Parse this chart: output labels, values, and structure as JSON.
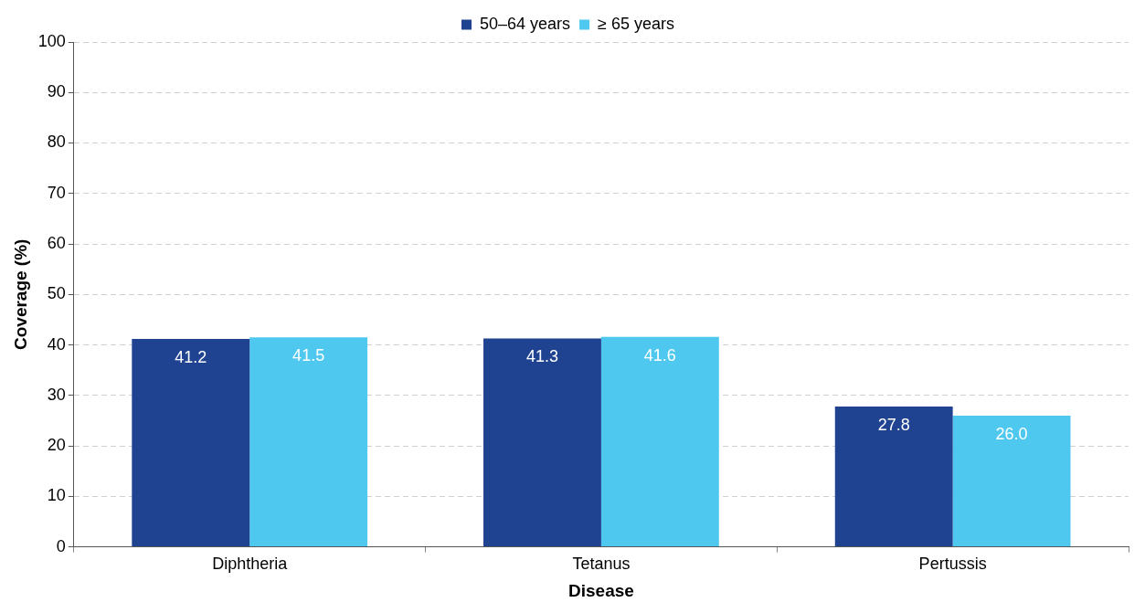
{
  "chart_data": {
    "type": "bar",
    "xlabel": "Disease",
    "ylabel": "Coverage (%)",
    "categories": [
      "Diphtheria",
      "Tetanus",
      "Pertussis"
    ],
    "series": [
      {
        "name": "50–64 years",
        "color": "#1f4391",
        "values": [
          41.2,
          41.3,
          27.8
        ],
        "value_labels": [
          "41.2",
          "41.3",
          "27.8"
        ]
      },
      {
        "name": "≥ 65 years",
        "color": "#4fc8f0",
        "values": [
          41.5,
          41.6,
          26.0
        ],
        "value_labels": [
          "41.5",
          "41.6",
          "26.0"
        ]
      }
    ],
    "ylim": [
      0,
      100
    ],
    "yticks": [
      0,
      10,
      20,
      30,
      40,
      50,
      60,
      70,
      80,
      90,
      100
    ],
    "grid": "y",
    "legend": "top"
  }
}
